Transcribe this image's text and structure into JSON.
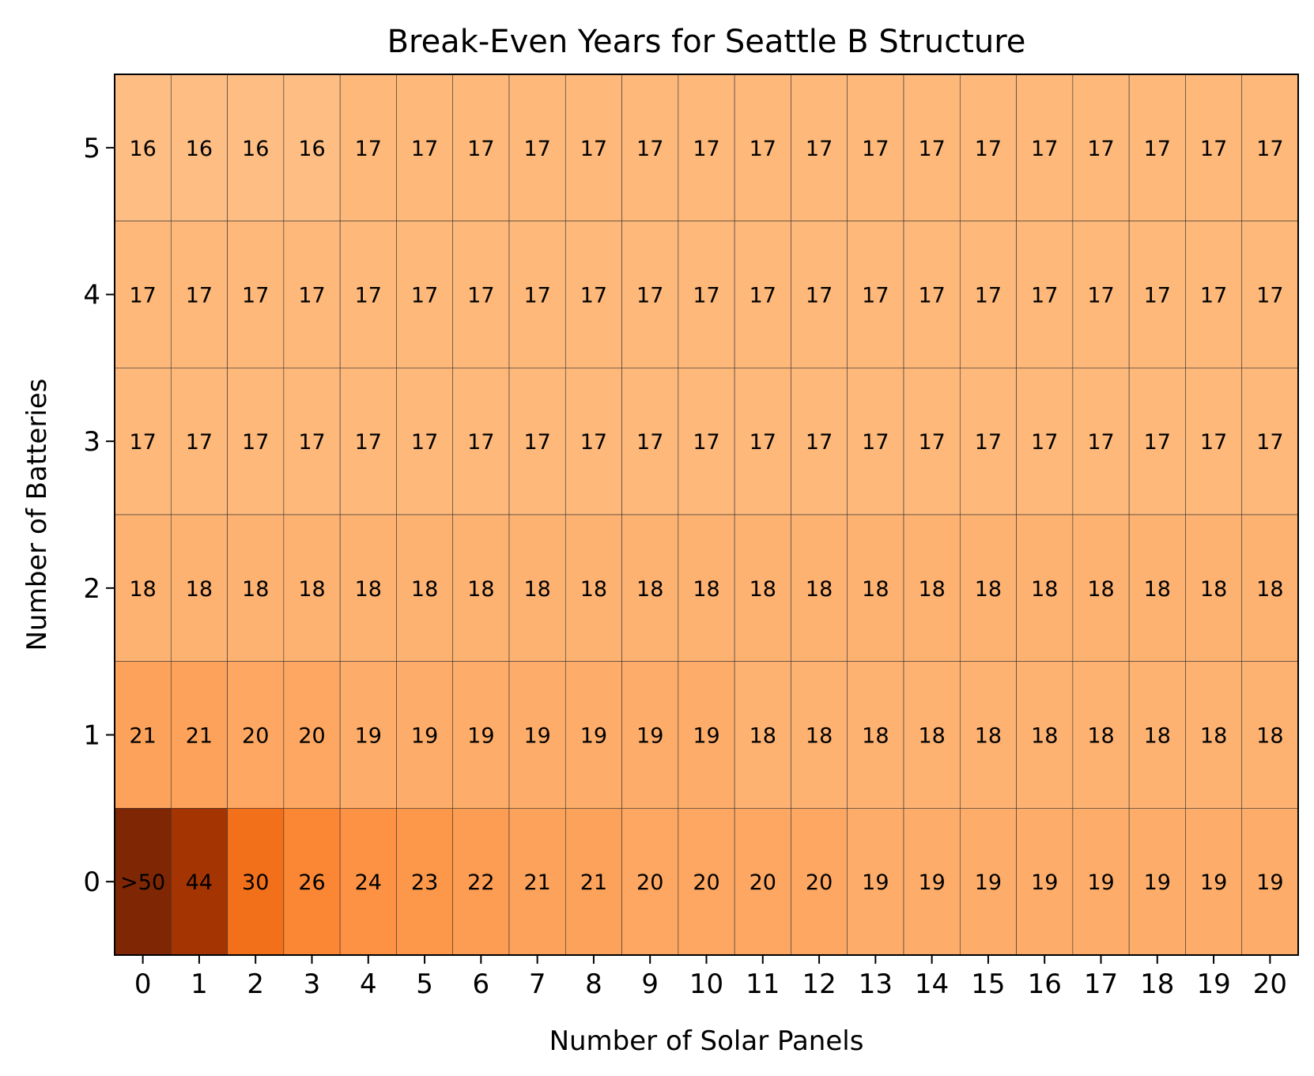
{
  "chart_data": {
    "type": "heatmap",
    "title": "Break-Even Years for Seattle B Structure",
    "xlabel": "Number of Solar Panels",
    "ylabel": "Number of Batteries",
    "x_ticks": [
      "0",
      "1",
      "2",
      "3",
      "4",
      "5",
      "6",
      "7",
      "8",
      "9",
      "10",
      "11",
      "12",
      "13",
      "14",
      "15",
      "16",
      "17",
      "18",
      "19",
      "20"
    ],
    "y_ticks": [
      "5",
      "4",
      "3",
      "2",
      "1",
      "0"
    ],
    "colormap": "Oranges",
    "grid": true,
    "rows": [
      {
        "batteries": "5",
        "values": [
          16,
          16,
          16,
          16,
          17,
          17,
          17,
          17,
          17,
          17,
          17,
          17,
          17,
          17,
          17,
          17,
          17,
          17,
          17,
          17,
          17
        ],
        "labels": [
          "16",
          "16",
          "16",
          "16",
          "17",
          "17",
          "17",
          "17",
          "17",
          "17",
          "17",
          "17",
          "17",
          "17",
          "17",
          "17",
          "17",
          "17",
          "17",
          "17",
          "17"
        ]
      },
      {
        "batteries": "4",
        "values": [
          17,
          17,
          17,
          17,
          17,
          17,
          17,
          17,
          17,
          17,
          17,
          17,
          17,
          17,
          17,
          17,
          17,
          17,
          17,
          17,
          17
        ],
        "labels": [
          "17",
          "17",
          "17",
          "17",
          "17",
          "17",
          "17",
          "17",
          "17",
          "17",
          "17",
          "17",
          "17",
          "17",
          "17",
          "17",
          "17",
          "17",
          "17",
          "17",
          "17"
        ]
      },
      {
        "batteries": "3",
        "values": [
          17,
          17,
          17,
          17,
          17,
          17,
          17,
          17,
          17,
          17,
          17,
          17,
          17,
          17,
          17,
          17,
          17,
          17,
          17,
          17,
          17
        ],
        "labels": [
          "17",
          "17",
          "17",
          "17",
          "17",
          "17",
          "17",
          "17",
          "17",
          "17",
          "17",
          "17",
          "17",
          "17",
          "17",
          "17",
          "17",
          "17",
          "17",
          "17",
          "17"
        ]
      },
      {
        "batteries": "2",
        "values": [
          18,
          18,
          18,
          18,
          18,
          18,
          18,
          18,
          18,
          18,
          18,
          18,
          18,
          18,
          18,
          18,
          18,
          18,
          18,
          18,
          18
        ],
        "labels": [
          "18",
          "18",
          "18",
          "18",
          "18",
          "18",
          "18",
          "18",
          "18",
          "18",
          "18",
          "18",
          "18",
          "18",
          "18",
          "18",
          "18",
          "18",
          "18",
          "18",
          "18"
        ]
      },
      {
        "batteries": "1",
        "values": [
          21,
          21,
          20,
          20,
          19,
          19,
          19,
          19,
          19,
          19,
          19,
          18,
          18,
          18,
          18,
          18,
          18,
          18,
          18,
          18,
          18
        ],
        "labels": [
          "21",
          "21",
          "20",
          "20",
          "19",
          "19",
          "19",
          "19",
          "19",
          "19",
          "19",
          "18",
          "18",
          "18",
          "18",
          "18",
          "18",
          "18",
          "18",
          "18",
          "18"
        ]
      },
      {
        "batteries": "0",
        "values": [
          50,
          44,
          30,
          26,
          24,
          23,
          22,
          21,
          21,
          20,
          20,
          20,
          20,
          19,
          19,
          19,
          19,
          19,
          19,
          19,
          19
        ],
        "labels": [
          ">50",
          "44",
          "30",
          "26",
          "24",
          "23",
          "22",
          "21",
          "21",
          "20",
          "20",
          "20",
          "20",
          "19",
          "19",
          "19",
          "19",
          "19",
          "19",
          "19",
          "19"
        ]
      }
    ]
  }
}
